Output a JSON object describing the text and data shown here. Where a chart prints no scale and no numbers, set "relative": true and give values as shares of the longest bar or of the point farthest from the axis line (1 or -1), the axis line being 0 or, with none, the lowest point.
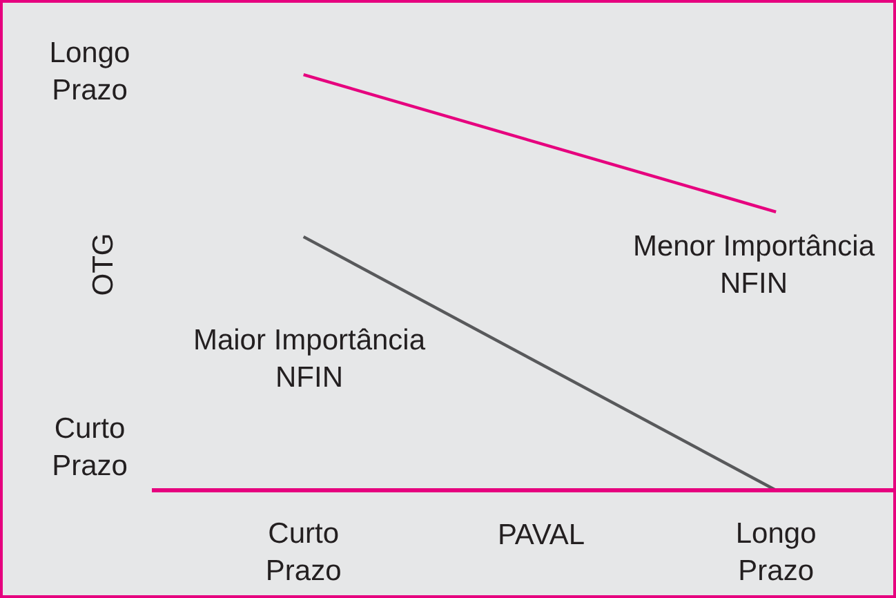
{
  "chart_data": {
    "type": "line",
    "relative": true,
    "xlabel": "PAVAL",
    "ylabel": "OTG",
    "categories": [
      "Curto Prazo",
      "Longo Prazo"
    ],
    "series": [
      {
        "color": "#e6007e",
        "values": [
          1,
          0.67
        ]
      },
      {
        "color": "#58595b",
        "values": [
          0.61,
          0
        ]
      }
    ],
    "annotations": [
      "Longo\nPrazo",
      "Curto\nPrazo",
      "Menor Importância\nNFIN",
      "Maior Importância\nNFIN"
    ],
    "grid": false,
    "legend": false,
    "marker": "none",
    "line_style": "solid"
  }
}
